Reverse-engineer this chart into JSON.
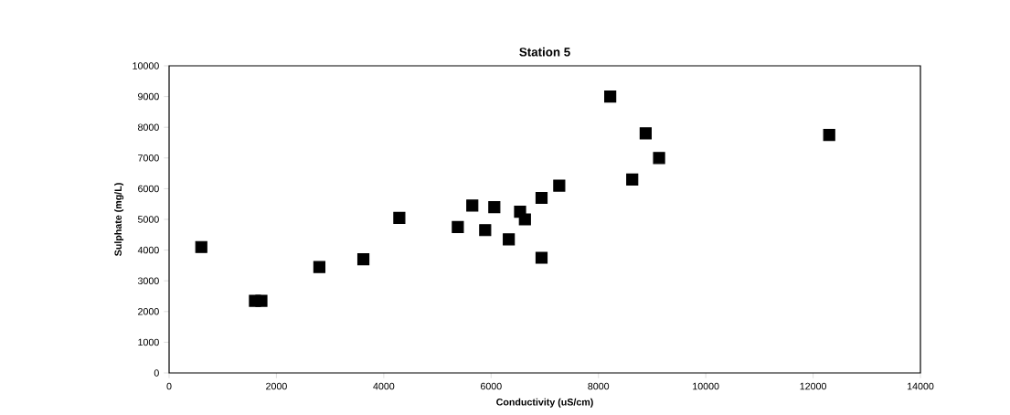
{
  "chart_data": {
    "type": "scatter",
    "title": "Station 5",
    "xlabel": "Conductivity (uS/cm)",
    "ylabel": "Sulphate (mg/L)",
    "x": [
      600,
      1600,
      1720,
      2800,
      3620,
      4290,
      5380,
      5650,
      5890,
      6060,
      6330,
      6540,
      6630,
      6940,
      6940,
      7270,
      8220,
      8880,
      9130,
      8630,
      12300
    ],
    "values": [
      4100,
      2350,
      2350,
      3450,
      3700,
      5050,
      4750,
      5450,
      4650,
      5400,
      4350,
      5250,
      5000,
      5700,
      3750,
      6100,
      9000,
      7800,
      7000,
      6300,
      7750
    ],
    "color": "#000000",
    "marker": "square",
    "xlim": [
      0,
      14000
    ],
    "xticks": [
      0,
      2000,
      4000,
      6000,
      8000,
      10000,
      12000,
      14000
    ],
    "ylim": [
      0,
      10000
    ],
    "yticks": [
      0,
      1000,
      2000,
      3000,
      4000,
      5000,
      6000,
      7000,
      8000,
      9000,
      10000
    ],
    "grid": false
  }
}
